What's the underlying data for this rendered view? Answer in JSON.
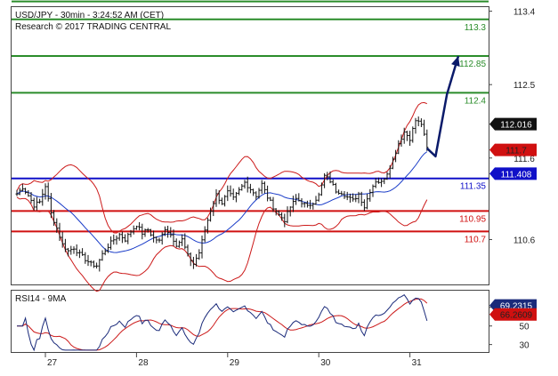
{
  "header": {
    "line1": "USD/JPY - 30min - 3:24:52 AM (CET)",
    "line2": "Research © 2017 TRADING CENTRAL"
  },
  "colors": {
    "resistance_green": "#2a8c2a",
    "support_red": "#d01010",
    "pivot_blue": "#1010c8",
    "price": "#111111",
    "ma_blue": "#1a3cc8",
    "bollinger_red": "#cc1a1a",
    "rsi_line": "#1a2a7a",
    "rsi_ma": "#cc1a1a",
    "arrow": "#0a1a6a"
  },
  "chart_data": [
    {
      "type": "line",
      "name": "price-panel",
      "ylim": [
        110.05,
        113.45
      ],
      "y_ticks": [
        {
          "value": 113.4,
          "label": "113.4"
        },
        {
          "value": 112.5,
          "label": "112.5"
        },
        {
          "value": 111.6,
          "label": "111.6"
        },
        {
          "value": 110.6,
          "label": "110.6"
        }
      ],
      "x_ticks": [
        {
          "index": 10,
          "label": "27"
        },
        {
          "index": 42,
          "label": "28"
        },
        {
          "index": 74,
          "label": "29"
        },
        {
          "index": 106,
          "label": "30"
        },
        {
          "index": 138,
          "label": "31"
        }
      ],
      "levels": [
        {
          "value": 113.52,
          "label": "",
          "role": "resistance"
        },
        {
          "value": 113.3,
          "label": "113.3",
          "role": "resistance"
        },
        {
          "value": 112.85,
          "label": "112.85",
          "role": "resistance"
        },
        {
          "value": 112.4,
          "label": "112.4",
          "role": "resistance"
        },
        {
          "value": 111.35,
          "label": "111.35",
          "role": "pivot"
        },
        {
          "value": 110.95,
          "label": "110.95",
          "role": "support"
        },
        {
          "value": 110.7,
          "label": "110.7",
          "role": "support"
        }
      ],
      "tags": [
        {
          "value": 112.016,
          "label": "112.016",
          "bg": "#111111",
          "fg": "#ffffff"
        },
        {
          "value": 111.7,
          "label": "111.7",
          "bg": "#d01010",
          "fg": "#222222"
        },
        {
          "value": 111.408,
          "label": "111.408",
          "bg": "#1010c8",
          "fg": "#ffffff"
        }
      ],
      "close_anchors": [
        [
          0,
          111.16
        ],
        [
          2,
          111.24
        ],
        [
          4,
          111.14
        ],
        [
          6,
          111.02
        ],
        [
          8,
          111.06
        ],
        [
          10,
          111.26
        ],
        [
          12,
          110.92
        ],
        [
          14,
          110.74
        ],
        [
          16,
          110.54
        ],
        [
          18,
          110.46
        ],
        [
          20,
          110.5
        ],
        [
          22,
          110.42
        ],
        [
          24,
          110.36
        ],
        [
          26,
          110.3
        ],
        [
          28,
          110.28
        ],
        [
          30,
          110.42
        ],
        [
          32,
          110.52
        ],
        [
          34,
          110.6
        ],
        [
          36,
          110.66
        ],
        [
          38,
          110.6
        ],
        [
          40,
          110.7
        ],
        [
          42,
          110.78
        ],
        [
          44,
          110.68
        ],
        [
          46,
          110.72
        ],
        [
          48,
          110.62
        ],
        [
          50,
          110.58
        ],
        [
          52,
          110.74
        ],
        [
          54,
          110.66
        ],
        [
          56,
          110.54
        ],
        [
          58,
          110.6
        ],
        [
          60,
          110.4
        ],
        [
          62,
          110.3
        ],
        [
          64,
          110.44
        ],
        [
          66,
          110.72
        ],
        [
          68,
          110.96
        ],
        [
          70,
          111.15
        ],
        [
          72,
          111.05
        ],
        [
          74,
          111.18
        ],
        [
          76,
          111.1
        ],
        [
          78,
          111.2
        ],
        [
          80,
          111.3
        ],
        [
          82,
          111.22
        ],
        [
          84,
          111.14
        ],
        [
          86,
          111.28
        ],
        [
          88,
          111.12
        ],
        [
          90,
          111.0
        ],
        [
          92,
          110.9
        ],
        [
          94,
          110.84
        ],
        [
          96,
          111.0
        ],
        [
          98,
          111.1
        ],
        [
          100,
          111.06
        ],
        [
          102,
          111.0
        ],
        [
          104,
          111.06
        ],
        [
          106,
          111.14
        ],
        [
          108,
          111.38
        ],
        [
          110,
          111.32
        ],
        [
          112,
          111.2
        ],
        [
          114,
          111.18
        ],
        [
          116,
          111.12
        ],
        [
          118,
          111.08
        ],
        [
          120,
          111.16
        ],
        [
          122,
          111.0
        ],
        [
          124,
          111.2
        ],
        [
          126,
          111.32
        ],
        [
          128,
          111.3
        ],
        [
          130,
          111.42
        ],
        [
          132,
          111.58
        ],
        [
          134,
          111.78
        ],
        [
          136,
          111.92
        ],
        [
          138,
          111.84
        ],
        [
          140,
          112.06
        ],
        [
          142,
          112.02
        ],
        [
          144,
          111.72
        ]
      ],
      "forecast": [
        [
          144,
          111.72
        ],
        [
          147,
          111.62
        ],
        [
          151,
          112.38
        ],
        [
          155,
          112.85
        ]
      ]
    },
    {
      "type": "line",
      "name": "rsi-panel",
      "title": "RSI14 - 9MA",
      "ylim": [
        22,
        88
      ],
      "y_ticks": [
        {
          "value": 70,
          "label": "70"
        },
        {
          "value": 50,
          "label": "50"
        },
        {
          "value": 30,
          "label": "30"
        }
      ],
      "tags": [
        {
          "value": 69.2315,
          "label": "69.2315",
          "bg": "#1a2a7a",
          "fg": "#ffffff"
        },
        {
          "value": 66.2609,
          "label": "66.2609",
          "bg": "#d01010",
          "fg": "#222222"
        }
      ]
    }
  ]
}
